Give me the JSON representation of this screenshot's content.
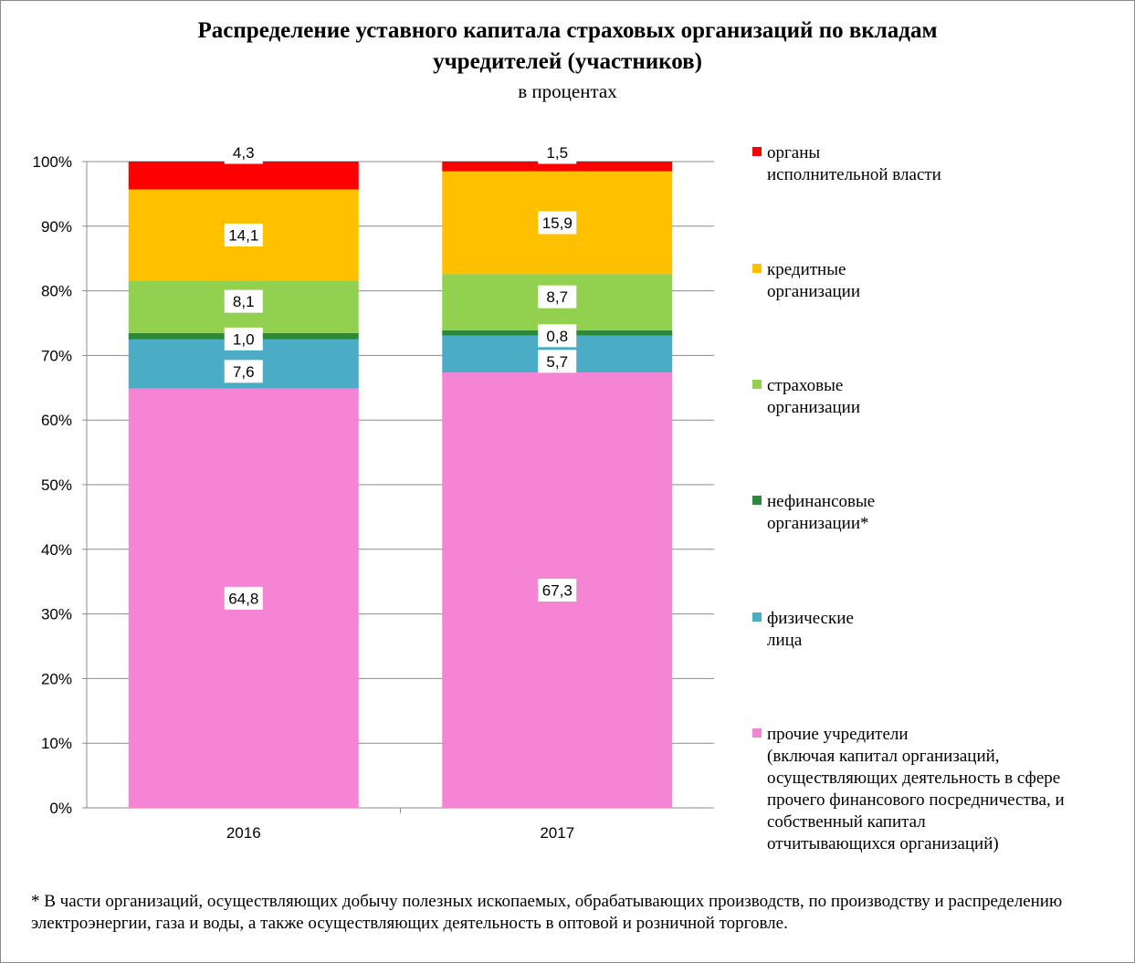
{
  "title_line1": "Распределение уставного капитала страховых организаций по вкладам",
  "title_line2": "учредителей (участников)",
  "subtitle": "в процентах",
  "footnote": "* В части организаций, осуществляющих добычу полезных ископаемых, обрабатывающих производств, по производству и распределению электроэнергии, газа и воды,  а также осуществляющих деятельность в оптовой и розничной торговле.",
  "chart_data": {
    "type": "bar",
    "stacked": true,
    "percent": true,
    "categories": [
      "2016",
      "2017"
    ],
    "ylim": [
      0,
      100
    ],
    "yticks": [
      "0%",
      "10%",
      "20%",
      "30%",
      "40%",
      "50%",
      "60%",
      "70%",
      "80%",
      "90%",
      "100%"
    ],
    "grid": true,
    "legend_position": "right",
    "series": [
      {
        "name": "прочие учредители\n(включая капитал организаций,\nосуществляющих деятельность в сфере\nпрочего финансового посредничества, и\nсобственный капитал\nотчитывающихся организаций)",
        "color": "#f584d5",
        "values": [
          64.8,
          67.3
        ],
        "labels": [
          "64,8",
          "67,3"
        ]
      },
      {
        "name": "физические\nлица",
        "color": "#4bacc6",
        "values": [
          7.6,
          5.7
        ],
        "labels": [
          "7,6",
          "5,7"
        ]
      },
      {
        "name": "нефинансовые\nорганизации*",
        "color": "#2a8a3a",
        "values": [
          1.0,
          0.8
        ],
        "labels": [
          "1,0",
          "0,8"
        ]
      },
      {
        "name": "страховые\nорганизации",
        "color": "#92d050",
        "values": [
          8.1,
          8.7
        ],
        "labels": [
          "8,1",
          "8,7"
        ]
      },
      {
        "name": "кредитные\nорганизации",
        "color": "#ffc000",
        "values": [
          14.1,
          15.9
        ],
        "labels": [
          "14,1",
          "15,9"
        ]
      },
      {
        "name": "органы\nисполнительной власти",
        "color": "#ff0000",
        "values": [
          4.3,
          1.5
        ],
        "labels": [
          "4,3",
          "1,5"
        ]
      }
    ]
  }
}
